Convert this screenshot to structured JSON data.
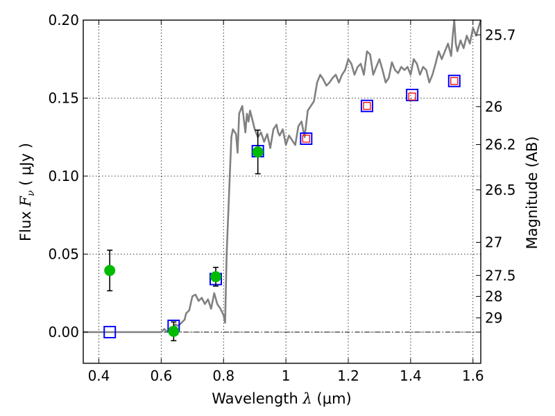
{
  "chart_data": {
    "type": "scatter",
    "xlabel": "Wavelength",
    "xlabel_symbol": "λ",
    "xlabel_unit": "(μm)",
    "ylabel": "Flux",
    "ylabel_symbol": "F",
    "ylabel_subscript": "ν",
    "ylabel_unit_open": "(",
    "ylabel_unit": "μJy",
    "ylabel_unit_close": ")",
    "y2label": "Magnitude (AB)",
    "xlim": [
      0.35,
      1.625
    ],
    "ylim": [
      -0.02,
      0.2
    ],
    "grid": true,
    "x_ticks": [
      {
        "value": 0.4,
        "label": "0.4"
      },
      {
        "value": 0.6,
        "label": "0.6"
      },
      {
        "value": 0.8,
        "label": "0.8"
      },
      {
        "value": 1.0,
        "label": "1"
      },
      {
        "value": 1.2,
        "label": "1.2"
      },
      {
        "value": 1.4,
        "label": "1.4"
      },
      {
        "value": 1.6,
        "label": "1.6"
      }
    ],
    "y_ticks": [
      {
        "value": 0.0,
        "label": "0.00"
      },
      {
        "value": 0.05,
        "label": "0.05"
      },
      {
        "value": 0.1,
        "label": "0.10"
      },
      {
        "value": 0.15,
        "label": "0.15"
      },
      {
        "value": 0.2,
        "label": "0.20"
      }
    ],
    "magnitude_ticks": [
      {
        "value": 25.7,
        "label": "25.7"
      },
      {
        "value": 26.0,
        "label": "26"
      },
      {
        "value": 26.2,
        "label": "26.2"
      },
      {
        "value": 26.5,
        "label": "26.5"
      },
      {
        "value": 27.0,
        "label": "27"
      },
      {
        "value": 27.5,
        "label": "27.5"
      },
      {
        "value": 28.0,
        "label": "28"
      },
      {
        "value": 29.0,
        "label": "29"
      }
    ],
    "series": [
      {
        "kind": "line",
        "color": "#808080",
        "x": [
          0.35,
          0.6,
          0.61,
          0.62,
          0.63,
          0.64,
          0.645,
          0.655,
          0.665,
          0.675,
          0.68,
          0.69,
          0.7,
          0.71,
          0.72,
          0.73,
          0.74,
          0.75,
          0.76,
          0.77,
          0.78,
          0.79,
          0.8,
          0.805,
          0.81,
          0.82,
          0.825,
          0.83,
          0.84,
          0.845,
          0.85,
          0.86,
          0.87,
          0.875,
          0.88,
          0.885,
          0.89,
          0.9,
          0.91,
          0.92,
          0.93,
          0.94,
          0.95,
          0.96,
          0.97,
          0.975,
          0.98,
          0.99,
          1.0,
          1.01,
          1.02,
          1.03,
          1.04,
          1.05,
          1.06,
          1.07,
          1.08,
          1.09,
          1.1,
          1.11,
          1.12,
          1.13,
          1.14,
          1.15,
          1.16,
          1.17,
          1.18,
          1.19,
          1.2,
          1.21,
          1.22,
          1.23,
          1.24,
          1.25,
          1.26,
          1.27,
          1.28,
          1.29,
          1.3,
          1.31,
          1.32,
          1.33,
          1.34,
          1.35,
          1.36,
          1.37,
          1.38,
          1.39,
          1.4,
          1.41,
          1.42,
          1.43,
          1.44,
          1.45,
          1.46,
          1.47,
          1.48,
          1.49,
          1.5,
          1.51,
          1.52,
          1.53,
          1.535,
          1.54,
          1.545,
          1.55,
          1.56,
          1.57,
          1.58,
          1.59,
          1.6,
          1.61,
          1.625
        ],
        "y": [
          0.0,
          0.0,
          0.002,
          0.0,
          0.003,
          0.0,
          0.005,
          0.004,
          0.006,
          0.008,
          0.012,
          0.014,
          0.023,
          0.024,
          0.02,
          0.022,
          0.018,
          0.021,
          0.015,
          0.025,
          0.018,
          0.015,
          0.011,
          0.006,
          0.05,
          0.1,
          0.125,
          0.13,
          0.127,
          0.115,
          0.14,
          0.145,
          0.128,
          0.14,
          0.135,
          0.142,
          0.138,
          0.13,
          0.125,
          0.128,
          0.122,
          0.127,
          0.118,
          0.13,
          0.133,
          0.128,
          0.126,
          0.13,
          0.12,
          0.126,
          0.123,
          0.12,
          0.132,
          0.135,
          0.125,
          0.142,
          0.145,
          0.148,
          0.16,
          0.165,
          0.162,
          0.158,
          0.16,
          0.163,
          0.165,
          0.16,
          0.165,
          0.168,
          0.175,
          0.172,
          0.165,
          0.17,
          0.172,
          0.165,
          0.18,
          0.178,
          0.165,
          0.17,
          0.175,
          0.168,
          0.16,
          0.163,
          0.173,
          0.168,
          0.166,
          0.17,
          0.168,
          0.17,
          0.165,
          0.175,
          0.172,
          0.165,
          0.17,
          0.168,
          0.16,
          0.165,
          0.172,
          0.18,
          0.175,
          0.18,
          0.185,
          0.177,
          0.19,
          0.2,
          0.185,
          0.18,
          0.187,
          0.182,
          0.19,
          0.185,
          0.195,
          0.19,
          0.2
        ]
      },
      {
        "kind": "points",
        "marker": "square",
        "color": "#0000ff",
        "x": [
          0.435,
          0.64,
          0.775,
          0.91,
          1.065,
          1.26,
          1.405,
          1.54
        ],
        "y": [
          0.0,
          0.004,
          0.034,
          0.116,
          0.124,
          0.145,
          0.152,
          0.161
        ]
      },
      {
        "kind": "points",
        "marker": "small-square",
        "color": "#ff0000",
        "x": [
          1.065,
          1.26,
          1.405,
          1.54
        ],
        "y": [
          0.124,
          0.145,
          0.151,
          0.161
        ]
      },
      {
        "kind": "points",
        "marker": "circle",
        "color": "#00bb00",
        "error_color": "#000000",
        "x": [
          0.435,
          0.64,
          0.775,
          0.91
        ],
        "y": [
          0.0395,
          0.0005,
          0.0355,
          0.1155
        ],
        "yerr": [
          0.013,
          0.006,
          0.006,
          0.014
        ]
      }
    ]
  }
}
